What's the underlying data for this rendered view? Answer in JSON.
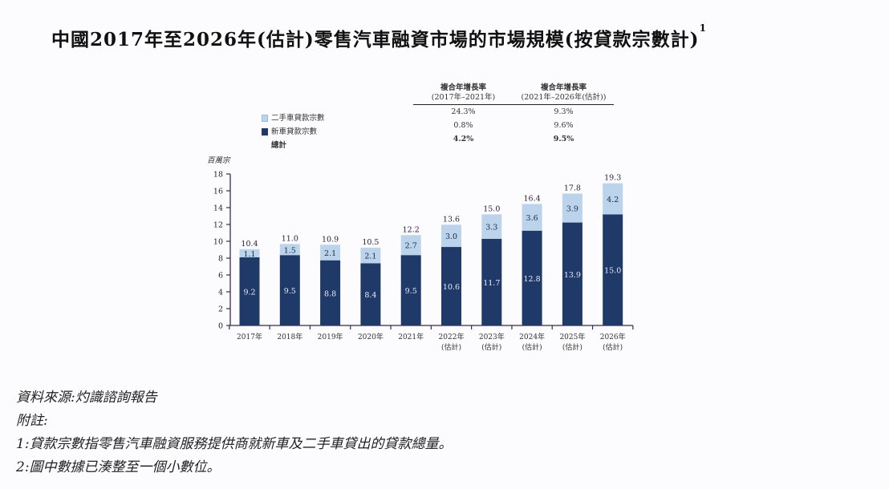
{
  "title": {
    "text": "中國2017年至2026年(估計)零售汽車融資市場的市場規模(按貸款宗數計)",
    "footnote_mark": "1"
  },
  "cagr_table": {
    "col1_title": "複合年增長率",
    "col1_period": "(2017年–2021年)",
    "col2_title": "複合年增長率",
    "col2_period": "(2021年–2026年(估計))",
    "rows": [
      {
        "label": "二手車貸款宗數",
        "c1": "24.3%",
        "c2": "9.3%"
      },
      {
        "label": "新車貸款宗數",
        "c1": "0.8%",
        "c2": "9.6%"
      },
      {
        "label": "總計",
        "c1": "4.2%",
        "c2": "9.5%"
      }
    ]
  },
  "legend": {
    "items": [
      {
        "label": "二手車貸款宗數",
        "color": "#bcd3ec"
      },
      {
        "label": "新車貸款宗數",
        "color": "#1f3a68"
      },
      {
        "label": "總計",
        "color": ""
      }
    ]
  },
  "chart_data": {
    "type": "bar",
    "stacked": true,
    "title": "中國2017年至2026年(估計)零售汽車融資市場的市場規模(按貸款宗數計)",
    "ylabel": "百萬宗",
    "xlabel": "",
    "ylim": [
      0,
      18
    ],
    "yticks": [
      0,
      2,
      4,
      6,
      8,
      10,
      12,
      14,
      16,
      18
    ],
    "grid": false,
    "legend_position": "top-left",
    "categories": [
      "2017年",
      "2018年",
      "2019年",
      "2020年",
      "2021年",
      "2022年(估計)",
      "2023年(估計)",
      "2024年(估計)",
      "2025年(估計)",
      "2026年(估計)"
    ],
    "category_lines": [
      [
        "2017年",
        ""
      ],
      [
        "2018年",
        ""
      ],
      [
        "2019年",
        ""
      ],
      [
        "2020年",
        ""
      ],
      [
        "2021年",
        ""
      ],
      [
        "2022年",
        "(估計)"
      ],
      [
        "2023年",
        "(估計)"
      ],
      [
        "2024年",
        "(估計)"
      ],
      [
        "2025年",
        "(估計)"
      ],
      [
        "2026年",
        "(估計)"
      ]
    ],
    "series": [
      {
        "name": "新車貸款宗數",
        "color": "#1f3a68",
        "values": [
          9.2,
          9.5,
          8.8,
          8.4,
          9.5,
          10.6,
          11.7,
          12.8,
          13.9,
          15.0
        ]
      },
      {
        "name": "二手車貸款宗數",
        "color": "#bcd3ec",
        "values": [
          1.1,
          1.5,
          2.1,
          2.1,
          2.7,
          3.0,
          3.3,
          3.6,
          3.9,
          4.2
        ]
      }
    ],
    "totals": [
      10.4,
      11.0,
      10.9,
      10.5,
      12.2,
      13.6,
      15.0,
      16.4,
      17.8,
      19.3
    ]
  },
  "notes": {
    "source": "資料來源:灼識諮詢報告",
    "heading": "附註:",
    "items": [
      "1:貸款宗數指零售汽車融資服務提供商就新車及二手車貸出的貸款總量。",
      "2:圖中數據已湊整至一個小數位。"
    ]
  }
}
